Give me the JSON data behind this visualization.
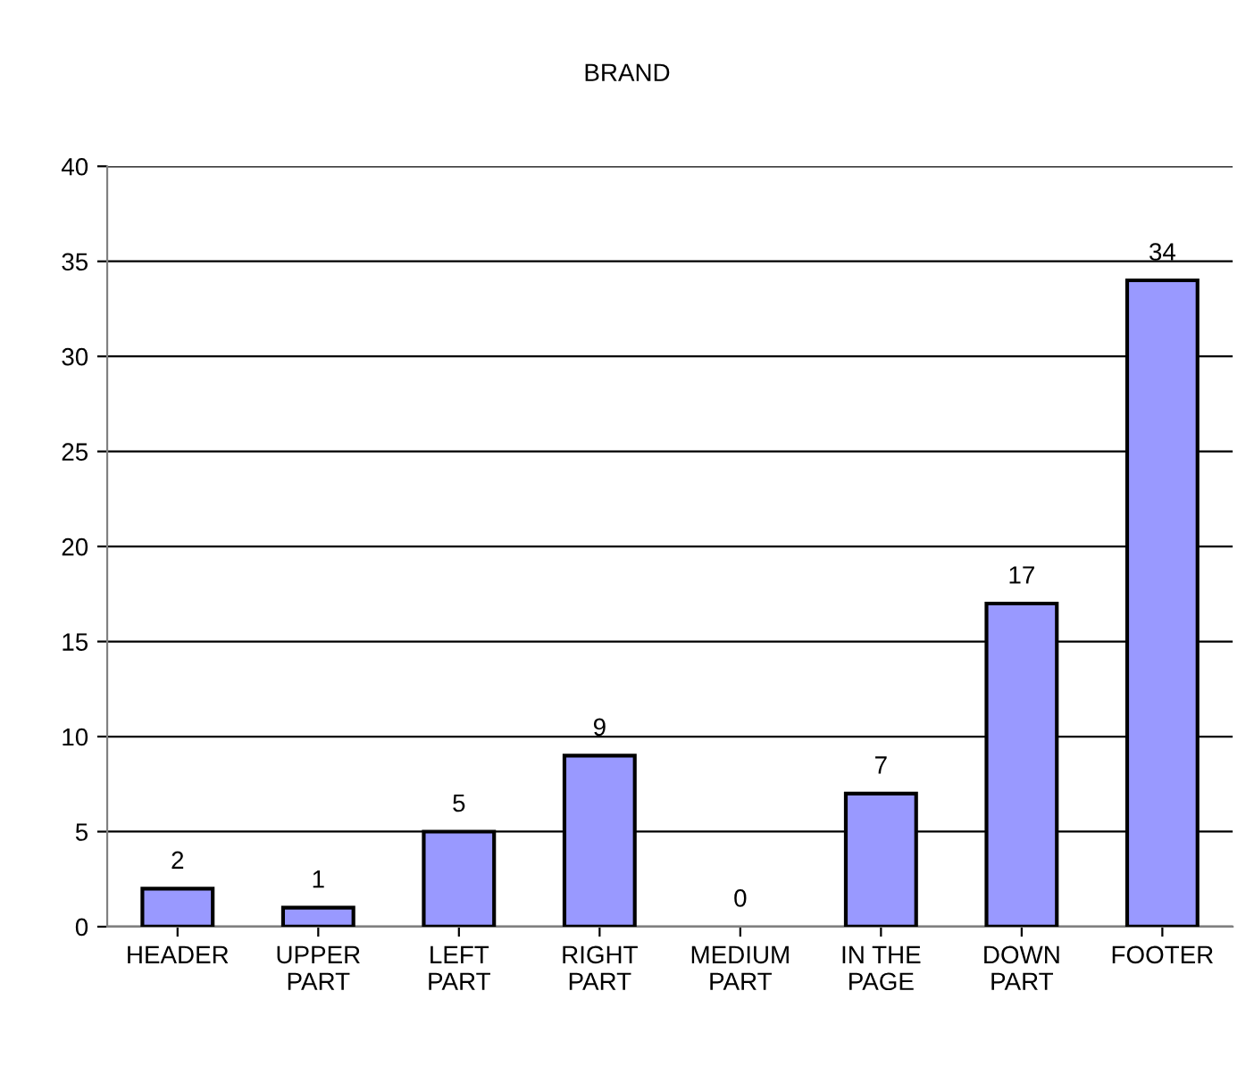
{
  "chart_data": {
    "type": "bar",
    "title": "BRAND",
    "categories": [
      "HEADER",
      "UPPER\nPART",
      "LEFT\nPART",
      "RIGHT\nPART",
      "MEDIUM\nPART",
      "IN THE\nPAGE",
      "DOWN\nPART",
      "FOOTER"
    ],
    "values": [
      2,
      1,
      5,
      9,
      0,
      7,
      17,
      34
    ],
    "color": "#9999ff",
    "ylim": [
      0,
      40
    ],
    "yticks": [
      0,
      5,
      10,
      15,
      20,
      25,
      30,
      35,
      40
    ],
    "grid": "y",
    "data_labels": true
  }
}
